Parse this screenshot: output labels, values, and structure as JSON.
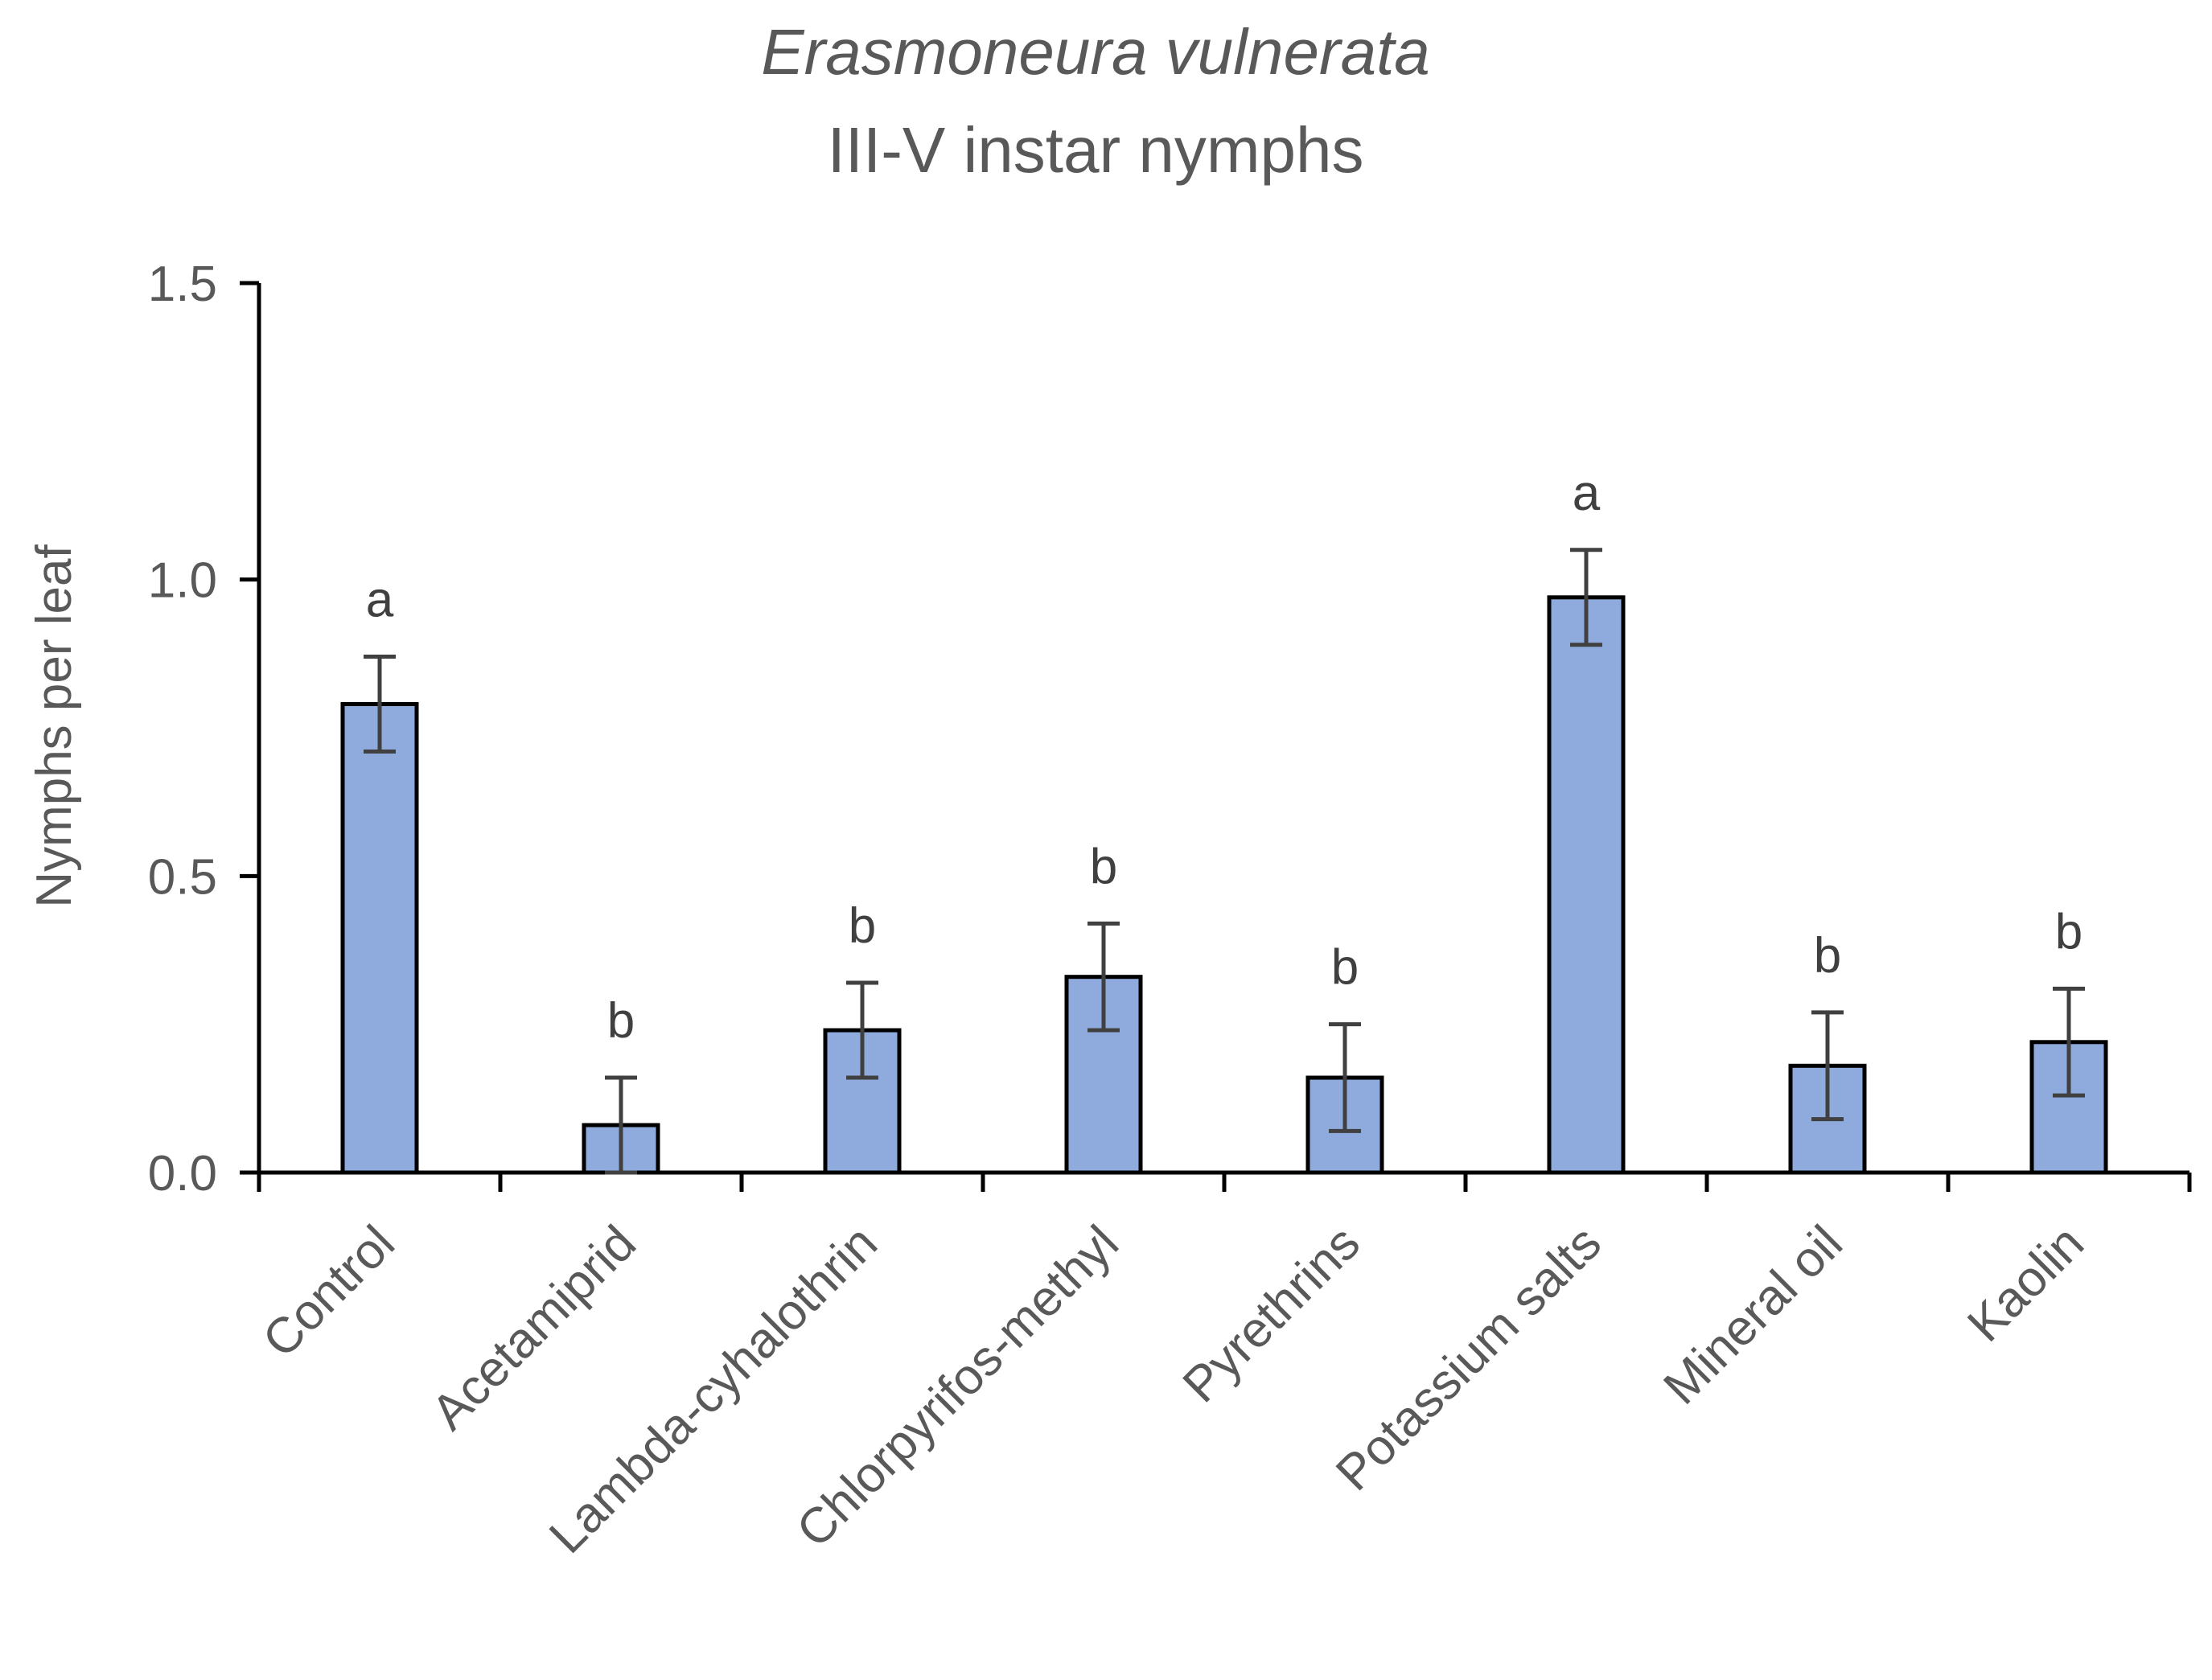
{
  "chart_data": {
    "type": "bar",
    "title": "Erasmoneura vulnerata",
    "subtitle": "III-V instar nymphs",
    "xlabel": "",
    "ylabel": "Nymphs per leaf",
    "ylim": [
      0,
      1.5
    ],
    "yticks": [
      "0.0",
      "0.5",
      "1.0",
      "1.5"
    ],
    "ytick_values": [
      0,
      0.5,
      1.0,
      1.5
    ],
    "categories": [
      "Control",
      "Acetamiprid",
      "Lambda-cyhalothrin",
      "Chlorpyrifos-methyl",
      "Pyrethrins",
      "Potassium salts",
      "Mineral oil",
      "Kaolin"
    ],
    "values": [
      0.79,
      0.08,
      0.24,
      0.33,
      0.16,
      0.97,
      0.18,
      0.22
    ],
    "errors": [
      0.08,
      0.08,
      0.08,
      0.09,
      0.09,
      0.08,
      0.09,
      0.09
    ],
    "significance": [
      "a",
      "b",
      "b",
      "b",
      "b",
      "a",
      "b",
      "b"
    ],
    "bar_color": "#8FAADC",
    "bar_edge_color": "#000000",
    "axis_color": "#000000",
    "text_color": "#595959",
    "grid": false,
    "legend": "none"
  }
}
